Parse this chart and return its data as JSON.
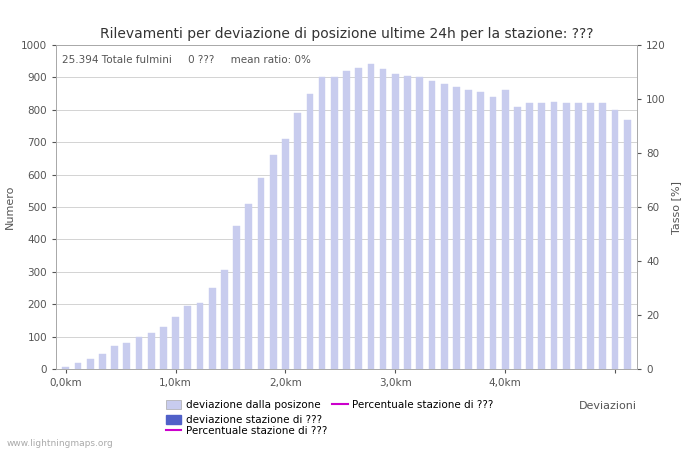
{
  "title": "Rilevamenti per deviazione di posizione ultime 24h per la stazione: ???",
  "xlabel": "Deviazioni",
  "ylabel_left": "Numero",
  "ylabel_right": "Tasso [%]",
  "annotation": "25.394 Totale fulmini     0 ???     mean ratio: 0%",
  "watermark": "www.lightningmaps.org",
  "ylim_left": [
    0,
    1000
  ],
  "ylim_right": [
    0,
    120
  ],
  "ytick_left": [
    0,
    100,
    200,
    300,
    400,
    500,
    600,
    700,
    800,
    900,
    1000
  ],
  "ytick_right": [
    0,
    20,
    40,
    60,
    80,
    100,
    120
  ],
  "bar_color_light": "#c8ccee",
  "bar_color_dark": "#5060c8",
  "line_color": "#cc00cc",
  "background_color": "#ffffff",
  "grid_color": "#cccccc",
  "bar_values": [
    5,
    20,
    30,
    45,
    70,
    80,
    100,
    110,
    130,
    160,
    195,
    205,
    250,
    305,
    440,
    510,
    590,
    660,
    710,
    790,
    850,
    900,
    900,
    920,
    930,
    940,
    925,
    910,
    905,
    900,
    890,
    880,
    870,
    860,
    855,
    840,
    860,
    810,
    820,
    820,
    825,
    820,
    820,
    820,
    820,
    800,
    770
  ],
  "xtick_positions": [
    0,
    9,
    18,
    27,
    36,
    45
  ],
  "xtick_labels": [
    "0,0km",
    "1,0km",
    "2,0km",
    "3,0km",
    "4,0km",
    ""
  ],
  "legend_label_light": "deviazione dalla posizone",
  "legend_label_dark": "deviazione stazione di ???",
  "legend_label_line": "Percentuale stazione di ???",
  "title_fontsize": 10,
  "label_fontsize": 8,
  "tick_fontsize": 7.5,
  "legend_fontsize": 7.5
}
